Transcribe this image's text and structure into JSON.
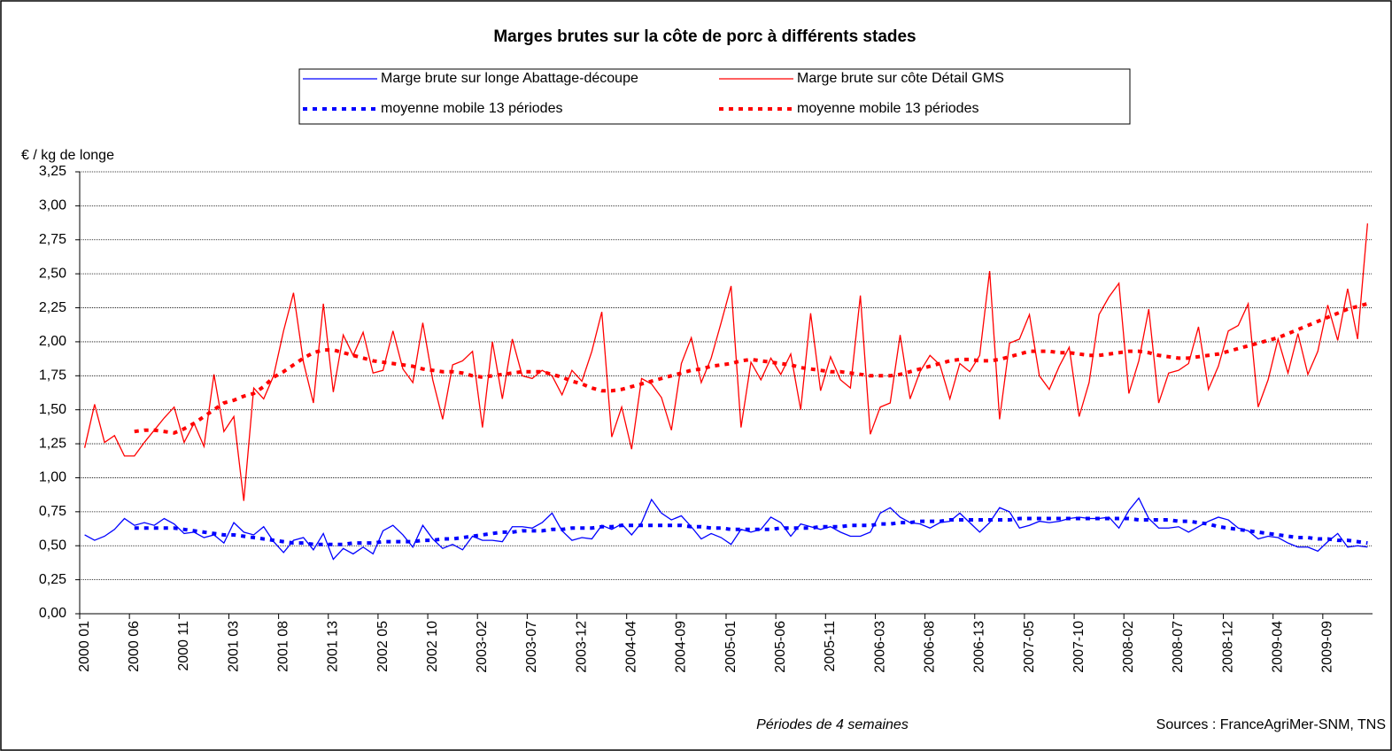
{
  "chart_data": {
    "type": "line",
    "title": "Marges brutes sur la côte de porc à différents stades",
    "y_label": "€ / kg de longe",
    "x_label": "Périodes de 4 semaines",
    "source": "Sources : FranceAgriMer-SNM, TNS",
    "categories": [
      "2000 01",
      null,
      null,
      null,
      null,
      "2000 06",
      null,
      null,
      null,
      null,
      "2000 11",
      null,
      null,
      null,
      null,
      "2001 03",
      null,
      null,
      null,
      null,
      "2001 08",
      null,
      null,
      null,
      null,
      "2001 13",
      null,
      null,
      null,
      null,
      "2002 05",
      null,
      null,
      null,
      null,
      "2002 10",
      null,
      null,
      null,
      null,
      "2003-02",
      null,
      null,
      null,
      null,
      "2003-07",
      null,
      null,
      null,
      null,
      "2003-12",
      null,
      null,
      null,
      null,
      "2004-04",
      null,
      null,
      null,
      null,
      "2004-09",
      null,
      null,
      null,
      null,
      "2005-01",
      null,
      null,
      null,
      null,
      "2005-06",
      null,
      null,
      null,
      null,
      "2005-11",
      null,
      null,
      null,
      null,
      "2006-03",
      null,
      null,
      null,
      null,
      "2006-08",
      null,
      null,
      null,
      null,
      "2006-13",
      null,
      null,
      null,
      null,
      "2007-05",
      null,
      null,
      null,
      null,
      "2007-10",
      null,
      null,
      null,
      null,
      "2008-02",
      null,
      null,
      null,
      null,
      "2008-07",
      null,
      null,
      null,
      null,
      "2008-12",
      null,
      null,
      null,
      null,
      "2009-04",
      null,
      null,
      null,
      null,
      "2009-09",
      null,
      null,
      null,
      null
    ],
    "series": [
      {
        "name": "Marge brute sur longe Abattage-découpe",
        "color": "#0000ff",
        "style": "solid",
        "values": [
          0.58,
          0.54,
          0.57,
          0.62,
          0.7,
          0.65,
          0.67,
          0.65,
          0.7,
          0.66,
          0.59,
          0.6,
          0.56,
          0.58,
          0.52,
          0.67,
          0.6,
          0.58,
          0.64,
          0.53,
          0.45,
          0.54,
          0.56,
          0.47,
          0.59,
          0.4,
          0.48,
          0.44,
          0.49,
          0.44,
          0.61,
          0.65,
          0.58,
          0.49,
          0.65,
          0.55,
          0.48,
          0.51,
          0.47,
          0.57,
          0.54,
          0.54,
          0.53,
          0.64,
          0.64,
          0.63,
          0.67,
          0.74,
          0.61,
          0.54,
          0.56,
          0.55,
          0.65,
          0.62,
          0.66,
          0.58,
          0.67,
          0.84,
          0.74,
          0.69,
          0.72,
          0.64,
          0.55,
          0.59,
          0.56,
          0.51,
          0.62,
          0.6,
          0.62,
          0.71,
          0.67,
          0.57,
          0.66,
          0.64,
          0.62,
          0.64,
          0.6,
          0.57,
          0.57,
          0.6,
          0.74,
          0.78,
          0.71,
          0.67,
          0.66,
          0.63,
          0.67,
          0.68,
          0.74,
          0.67,
          0.6,
          0.67,
          0.78,
          0.75,
          0.63,
          0.65,
          0.68,
          0.67,
          0.68,
          0.7,
          0.71,
          0.7,
          0.7,
          0.71,
          0.63,
          0.76,
          0.85,
          0.7,
          0.63,
          0.63,
          0.64,
          0.6,
          0.64,
          0.68,
          0.71,
          0.69,
          0.63,
          0.61,
          0.55,
          0.57,
          0.56,
          0.52,
          0.49,
          0.49,
          0.46,
          0.53,
          0.59,
          0.49,
          0.5,
          0.49
        ]
      },
      {
        "name": "Marge brute sur côte Détail GMS",
        "color": "#ff0000",
        "style": "solid",
        "values": [
          1.22,
          1.54,
          1.26,
          1.31,
          1.16,
          1.16,
          1.26,
          1.35,
          1.44,
          1.52,
          1.26,
          1.4,
          1.23,
          1.76,
          1.34,
          1.45,
          0.83,
          1.66,
          1.58,
          1.75,
          2.08,
          2.36,
          1.85,
          1.55,
          2.28,
          1.63,
          2.05,
          1.9,
          2.07,
          1.77,
          1.79,
          2.08,
          1.8,
          1.7,
          2.14,
          1.72,
          1.43,
          1.83,
          1.86,
          1.93,
          1.37,
          2.0,
          1.58,
          2.02,
          1.75,
          1.73,
          1.79,
          1.75,
          1.61,
          1.79,
          1.71,
          1.93,
          2.22,
          1.3,
          1.52,
          1.21,
          1.73,
          1.69,
          1.59,
          1.35,
          1.84,
          2.03,
          1.7,
          1.88,
          2.14,
          2.41,
          1.37,
          1.85,
          1.72,
          1.88,
          1.76,
          1.91,
          1.5,
          2.21,
          1.64,
          1.89,
          1.72,
          1.66,
          2.34,
          1.32,
          1.52,
          1.55,
          2.05,
          1.58,
          1.78,
          1.9,
          1.83,
          1.58,
          1.84,
          1.78,
          1.9,
          2.52,
          1.43,
          1.99,
          2.02,
          2.2,
          1.75,
          1.65,
          1.82,
          1.96,
          1.45,
          1.7,
          2.2,
          2.33,
          2.43,
          1.62,
          1.86,
          2.24,
          1.55,
          1.77,
          1.79,
          1.84,
          2.11,
          1.65,
          1.82,
          2.08,
          2.12,
          2.28,
          1.52,
          1.72,
          2.02,
          1.77,
          2.06,
          1.76,
          1.93,
          2.27,
          2.01,
          2.39,
          2.02,
          2.87
        ]
      },
      {
        "name": "moyenne mobile 13 périodes",
        "color": "#0000ff",
        "style": "dotted",
        "values": [
          null,
          null,
          null,
          null,
          null,
          0.63,
          0.63,
          0.63,
          0.63,
          0.63,
          0.62,
          0.61,
          0.6,
          0.59,
          0.58,
          0.58,
          0.57,
          0.56,
          0.55,
          0.54,
          0.53,
          0.52,
          0.52,
          0.51,
          0.51,
          0.51,
          0.51,
          0.52,
          0.52,
          0.52,
          0.53,
          0.53,
          0.53,
          0.53,
          0.54,
          0.54,
          0.55,
          0.55,
          0.56,
          0.57,
          0.58,
          0.59,
          0.6,
          0.6,
          0.61,
          0.61,
          0.61,
          0.62,
          0.62,
          0.63,
          0.63,
          0.63,
          0.64,
          0.64,
          0.65,
          0.65,
          0.65,
          0.65,
          0.65,
          0.65,
          0.65,
          0.64,
          0.64,
          0.63,
          0.63,
          0.62,
          0.62,
          0.62,
          0.62,
          0.62,
          0.63,
          0.63,
          0.63,
          0.63,
          0.64,
          0.64,
          0.64,
          0.65,
          0.65,
          0.65,
          0.66,
          0.66,
          0.67,
          0.67,
          0.68,
          0.68,
          0.68,
          0.69,
          0.69,
          0.69,
          0.69,
          0.69,
          0.69,
          0.69,
          0.7,
          0.7,
          0.7,
          0.7,
          0.7,
          0.7,
          0.7,
          0.7,
          0.7,
          0.7,
          0.7,
          0.7,
          0.69,
          0.69,
          0.69,
          0.69,
          0.68,
          0.68,
          0.67,
          0.66,
          0.64,
          0.63,
          0.62,
          0.61,
          0.6,
          0.59,
          0.58,
          0.57,
          0.56,
          0.56,
          0.55,
          0.55,
          0.54,
          0.54,
          0.53,
          0.52
        ]
      },
      {
        "name": "moyenne mobile 13 périodes",
        "color": "#ff0000",
        "style": "dotted",
        "values": [
          null,
          null,
          null,
          null,
          null,
          1.34,
          1.35,
          1.35,
          1.34,
          1.33,
          1.36,
          1.4,
          1.45,
          1.5,
          1.55,
          1.57,
          1.6,
          1.62,
          1.67,
          1.74,
          1.78,
          1.83,
          1.88,
          1.92,
          1.94,
          1.94,
          1.92,
          1.9,
          1.88,
          1.86,
          1.85,
          1.84,
          1.83,
          1.82,
          1.8,
          1.79,
          1.78,
          1.78,
          1.77,
          1.75,
          1.74,
          1.75,
          1.76,
          1.77,
          1.78,
          1.78,
          1.78,
          1.76,
          1.74,
          1.71,
          1.69,
          1.66,
          1.64,
          1.64,
          1.65,
          1.67,
          1.69,
          1.71,
          1.73,
          1.75,
          1.77,
          1.79,
          1.8,
          1.82,
          1.83,
          1.84,
          1.86,
          1.87,
          1.86,
          1.85,
          1.84,
          1.83,
          1.81,
          1.8,
          1.79,
          1.78,
          1.78,
          1.77,
          1.76,
          1.75,
          1.75,
          1.75,
          1.76,
          1.78,
          1.8,
          1.82,
          1.84,
          1.86,
          1.87,
          1.87,
          1.86,
          1.86,
          1.87,
          1.89,
          1.91,
          1.93,
          1.93,
          1.93,
          1.92,
          1.92,
          1.91,
          1.9,
          1.9,
          1.91,
          1.92,
          1.93,
          1.93,
          1.92,
          1.9,
          1.89,
          1.88,
          1.88,
          1.89,
          1.9,
          1.91,
          1.93,
          1.95,
          1.97,
          1.99,
          2.01,
          2.03,
          2.06,
          2.09,
          2.12,
          2.15,
          2.18,
          2.21,
          2.24,
          2.26,
          2.28
        ]
      }
    ],
    "ylim": [
      0,
      3.25
    ],
    "yticks": [
      {
        "value": 0,
        "label": "0,00"
      },
      {
        "value": 0.25,
        "label": "0,25"
      },
      {
        "value": 0.5,
        "label": "0,50"
      },
      {
        "value": 0.75,
        "label": "0,75"
      },
      {
        "value": 1,
        "label": "1,00"
      },
      {
        "value": 1.25,
        "label": "1,25"
      },
      {
        "value": 1.5,
        "label": "1,50"
      },
      {
        "value": 1.75,
        "label": "1,75"
      },
      {
        "value": 2,
        "label": "2,00"
      },
      {
        "value": 2.25,
        "label": "2,25"
      },
      {
        "value": 2.5,
        "label": "2,50"
      },
      {
        "value": 2.75,
        "label": "2,75"
      },
      {
        "value": 3,
        "label": "3,00"
      },
      {
        "value": 3.25,
        "label": "3,25"
      }
    ],
    "grid": true
  }
}
